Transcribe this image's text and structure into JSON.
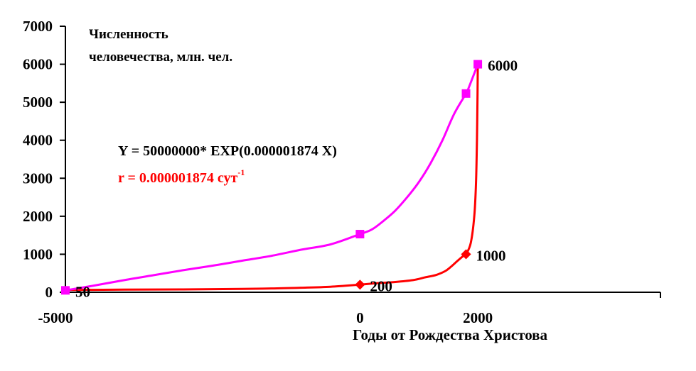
{
  "chart_data": {
    "type": "line",
    "title_lines": [
      "Численность",
      "человечества, млн. чел."
    ],
    "xlabel": "Годы от Рождества Христова",
    "ylabel": "",
    "xlim": [
      -5000,
      5100
    ],
    "ylim": [
      0,
      7000
    ],
    "x_ticks": [
      -5000,
      0,
      2000
    ],
    "y_ticks": [
      0,
      1000,
      2000,
      3000,
      4000,
      5000,
      6000,
      7000
    ],
    "formula": "Y = 50000000* EXP(0.000001874 X)",
    "rate_text": "r = 0.000001874 сут",
    "rate_sup": "-1",
    "colors": {
      "magenta": "#ff00ff",
      "red": "#ff0000",
      "axis": "#000000"
    },
    "series": [
      {
        "color": "#ff00ff",
        "marker": "square",
        "line": [
          [
            -5000,
            50
          ],
          [
            -4500,
            180
          ],
          [
            -4000,
            320
          ],
          [
            -3500,
            450
          ],
          [
            -3000,
            580
          ],
          [
            -2500,
            700
          ],
          [
            -2000,
            830
          ],
          [
            -1500,
            960
          ],
          [
            -1000,
            1120
          ],
          [
            -500,
            1260
          ],
          [
            0,
            1530
          ],
          [
            200,
            1650
          ],
          [
            400,
            1880
          ],
          [
            600,
            2150
          ],
          [
            800,
            2500
          ],
          [
            1000,
            2900
          ],
          [
            1200,
            3400
          ],
          [
            1400,
            4000
          ],
          [
            1600,
            4700
          ],
          [
            1800,
            5230
          ],
          [
            1850,
            5400
          ],
          [
            1950,
            5800
          ],
          [
            2000,
            6000
          ]
        ],
        "points": [
          [
            -5000,
            50
          ],
          [
            0,
            1530
          ],
          [
            1800,
            5230
          ],
          [
            2000,
            6000
          ]
        ]
      },
      {
        "color": "#ff0000",
        "marker": "diamond",
        "line": [
          [
            -5000,
            60
          ],
          [
            -4000,
            70
          ],
          [
            -3000,
            75
          ],
          [
            -2000,
            90
          ],
          [
            -1500,
            100
          ],
          [
            -1000,
            120
          ],
          [
            -500,
            145
          ],
          [
            0,
            200
          ],
          [
            300,
            240
          ],
          [
            600,
            270
          ],
          [
            900,
            320
          ],
          [
            1100,
            390
          ],
          [
            1300,
            460
          ],
          [
            1450,
            560
          ],
          [
            1550,
            680
          ],
          [
            1650,
            820
          ],
          [
            1750,
            950
          ],
          [
            1800,
            1000
          ],
          [
            1880,
            1300
          ],
          [
            1940,
            2000
          ],
          [
            1970,
            2900
          ],
          [
            1985,
            4000
          ],
          [
            1995,
            5200
          ],
          [
            2000,
            6000
          ]
        ],
        "points": [
          [
            0,
            200
          ],
          [
            1800,
            1000
          ]
        ]
      }
    ],
    "annotations": [
      {
        "text": "50",
        "x": -5000,
        "y": 50
      },
      {
        "text": "200",
        "x": 0,
        "y": 200
      },
      {
        "text": "1000",
        "x": 1800,
        "y": 1000
      },
      {
        "text": "6000",
        "x": 2000,
        "y": 6000
      }
    ]
  }
}
